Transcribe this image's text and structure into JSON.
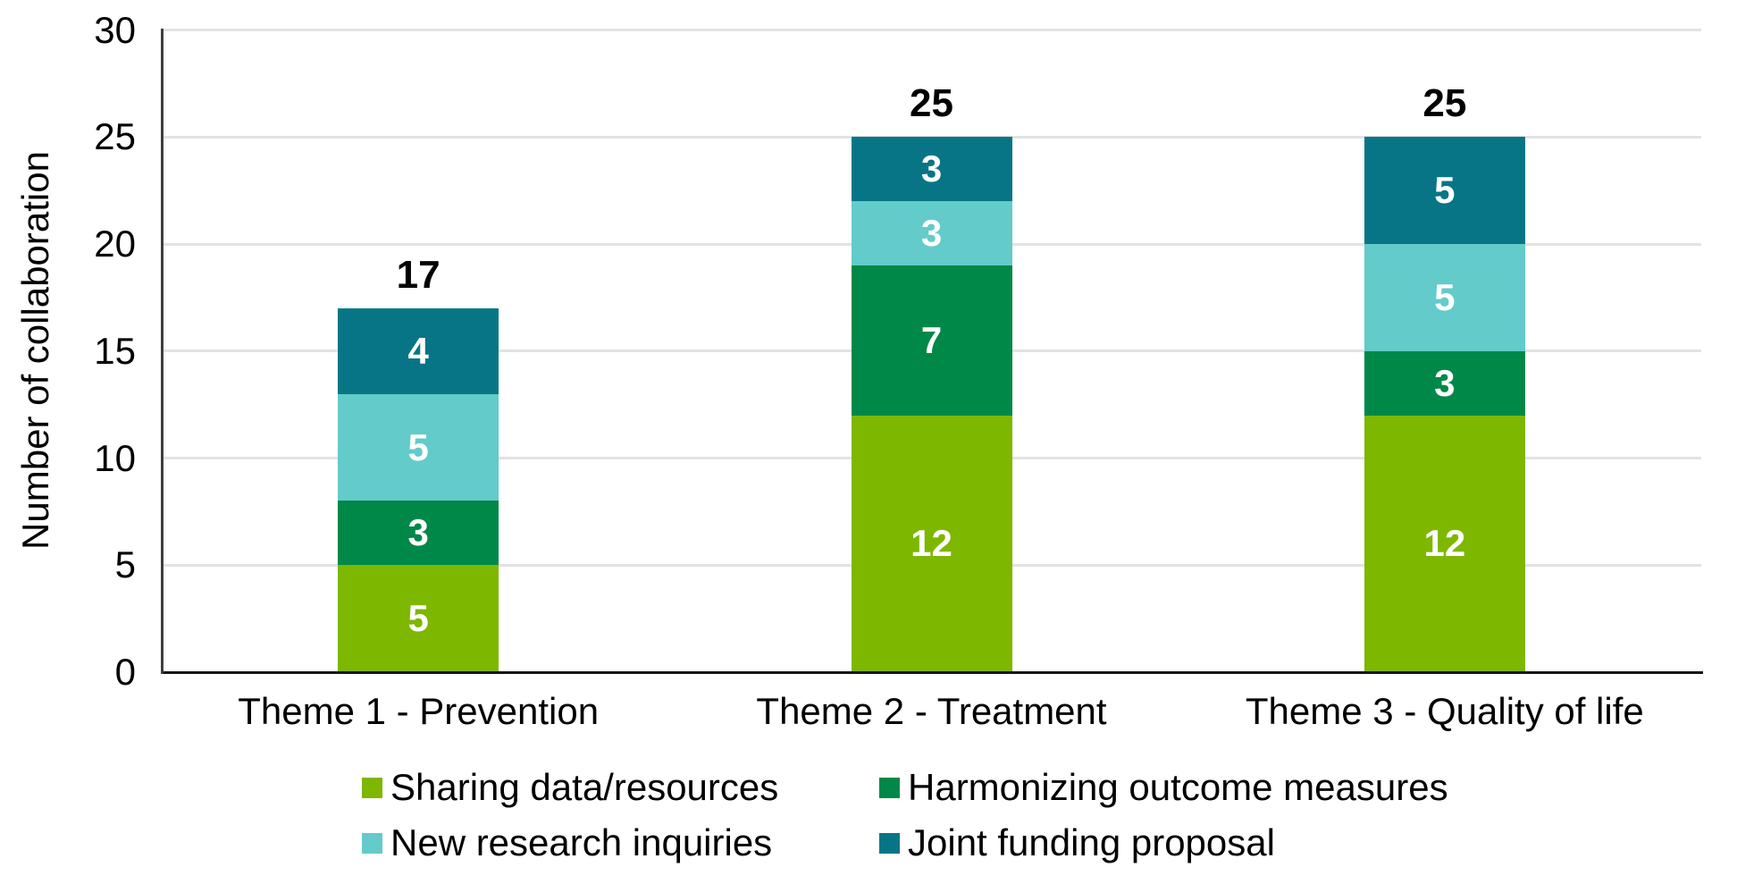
{
  "chart_data": {
    "type": "bar",
    "stacked": true,
    "title": "",
    "xlabel": "",
    "ylabel": "Number of collaboration",
    "ylim": [
      0,
      30
    ],
    "yticks": [
      0,
      5,
      10,
      15,
      20,
      25,
      30
    ],
    "grid": true,
    "legend_position": "bottom",
    "categories": [
      "Theme 1 - Prevention",
      "Theme 2 - Treatment",
      "Theme 3 - Quality of life"
    ],
    "series": [
      {
        "name": "Sharing data/resources",
        "color": "#7DB700",
        "values": [
          5,
          12,
          12
        ]
      },
      {
        "name": "Harmonizing outcome measures",
        "color": "#008848",
        "values": [
          3,
          7,
          3
        ]
      },
      {
        "name": "New research inquiries",
        "color": "#63CBCA",
        "values": [
          5,
          3,
          5
        ]
      },
      {
        "name": "Joint funding proposal",
        "color": "#087586",
        "values": [
          4,
          3,
          5
        ]
      }
    ],
    "totals": [
      17,
      25,
      25
    ],
    "segment_label_color": "#FFFFFF",
    "total_label_color": "#000000"
  }
}
